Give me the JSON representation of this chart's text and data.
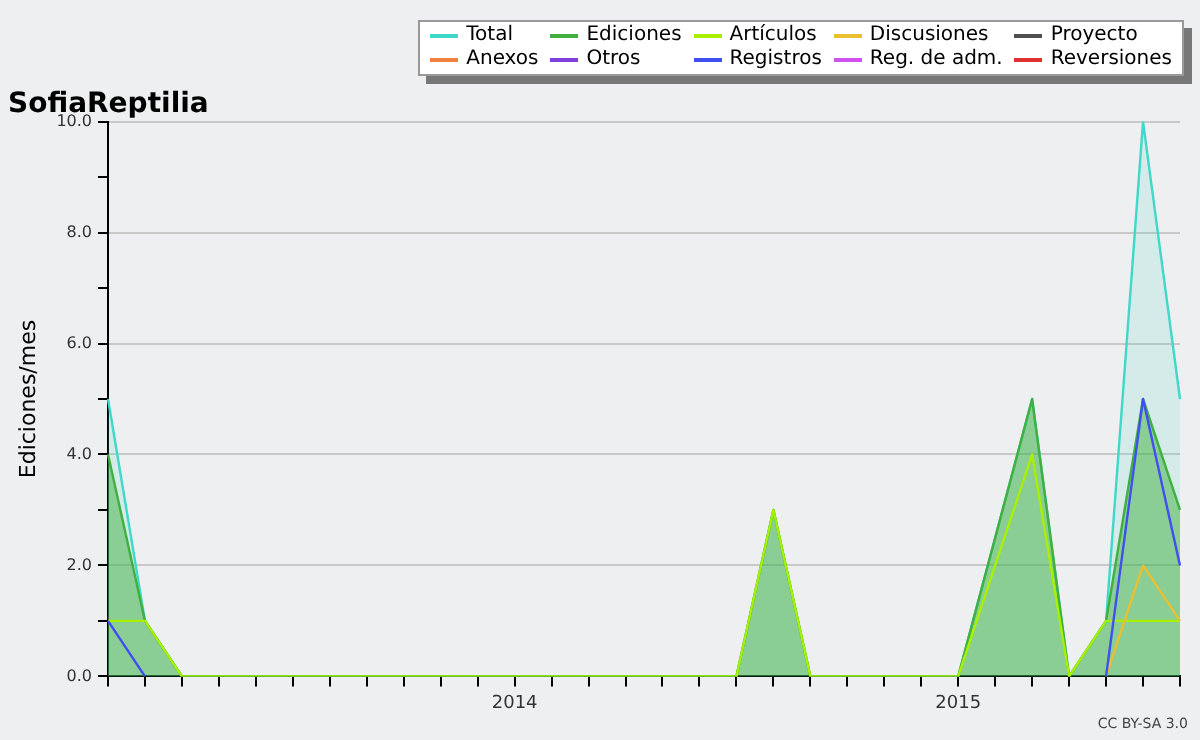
{
  "chart_data": {
    "type": "area",
    "title": "SofiaReptilia",
    "ylabel": "Ediciones/mes",
    "categories": [
      null,
      null,
      null,
      null,
      null,
      null,
      null,
      null,
      null,
      null,
      null,
      "2014",
      null,
      null,
      null,
      null,
      null,
      null,
      null,
      null,
      null,
      null,
      null,
      "2015",
      null,
      null,
      null,
      null,
      null,
      null
    ],
    "series": [
      {
        "name": "Total",
        "color": "#40d8c8",
        "values": [
          5,
          1,
          0,
          0,
          0,
          0,
          0,
          0,
          0,
          0,
          0,
          0,
          0,
          0,
          0,
          0,
          0,
          0,
          3,
          0,
          0,
          0,
          0,
          0,
          2.5,
          5,
          0,
          1,
          10,
          5
        ]
      },
      {
        "name": "Ediciones",
        "color": "#40b040",
        "values": [
          4,
          1,
          0,
          0,
          0,
          0,
          0,
          0,
          0,
          0,
          0,
          0,
          0,
          0,
          0,
          0,
          0,
          0,
          3,
          0,
          0,
          0,
          0,
          0,
          2.5,
          5,
          0,
          1,
          5,
          3
        ]
      },
      {
        "name": "Artículos",
        "color": "#a8f000",
        "type": "line",
        "values": [
          1,
          1,
          0,
          0,
          0,
          0,
          0,
          0,
          0,
          0,
          0,
          0,
          0,
          0,
          0,
          0,
          0,
          0,
          3,
          0,
          0,
          0,
          0,
          0,
          2,
          4,
          0,
          1,
          1,
          1
        ]
      },
      {
        "name": "Discusiones",
        "color": "#e8c030",
        "type": "line",
        "values": [
          null,
          null,
          null,
          null,
          null,
          null,
          null,
          null,
          null,
          null,
          null,
          null,
          null,
          null,
          null,
          null,
          null,
          null,
          null,
          null,
          null,
          null,
          null,
          null,
          null,
          null,
          null,
          0,
          2,
          1
        ]
      },
      {
        "name": "Proyecto",
        "color": "#505050",
        "type": "line",
        "values": [
          null,
          null,
          null,
          null,
          null,
          null,
          null,
          null,
          null,
          null,
          null,
          null,
          null,
          null,
          null,
          null,
          null,
          null,
          null,
          null,
          null,
          null,
          null,
          null,
          null,
          null,
          null,
          null,
          null,
          null
        ]
      },
      {
        "name": "Anexos",
        "color": "#f08040",
        "type": "line",
        "values": [
          null,
          null,
          null,
          null,
          null,
          null,
          null,
          null,
          null,
          null,
          null,
          null,
          null,
          null,
          null,
          null,
          null,
          null,
          null,
          null,
          null,
          null,
          null,
          null,
          null,
          null,
          null,
          null,
          null,
          null
        ]
      },
      {
        "name": "Otros",
        "color": "#8040e0",
        "type": "line",
        "values": [
          null,
          null,
          null,
          null,
          null,
          null,
          null,
          null,
          null,
          null,
          null,
          null,
          null,
          null,
          null,
          null,
          null,
          null,
          null,
          null,
          null,
          null,
          null,
          null,
          null,
          null,
          null,
          null,
          null,
          null
        ]
      },
      {
        "name": "Registros",
        "color": "#4050f0",
        "type": "line",
        "values": [
          1,
          0,
          null,
          null,
          null,
          null,
          null,
          null,
          null,
          null,
          null,
          null,
          null,
          null,
          null,
          null,
          null,
          null,
          null,
          null,
          null,
          null,
          null,
          null,
          null,
          null,
          null,
          0,
          5,
          2
        ]
      },
      {
        "name": "Reg. de adm.",
        "color": "#d050f0",
        "type": "line",
        "values": [
          null,
          null,
          null,
          null,
          null,
          null,
          null,
          null,
          null,
          null,
          null,
          null,
          null,
          null,
          null,
          null,
          null,
          null,
          null,
          null,
          null,
          null,
          null,
          null,
          null,
          null,
          null,
          null,
          null,
          null
        ]
      },
      {
        "name": "Reversiones",
        "color": "#e03030",
        "type": "line",
        "values": [
          null,
          null,
          null,
          null,
          null,
          null,
          null,
          null,
          null,
          null,
          null,
          null,
          null,
          null,
          null,
          null,
          null,
          null,
          null,
          null,
          null,
          null,
          null,
          null,
          null,
          null,
          null,
          null,
          null,
          null
        ]
      }
    ],
    "ylim": [
      0,
      10
    ],
    "yticks": [
      {
        "value": 0,
        "label": "0.0"
      },
      {
        "value": 1,
        "label": null
      },
      {
        "value": 2,
        "label": "2.0"
      },
      {
        "value": 3,
        "label": null
      },
      {
        "value": 4,
        "label": "4.0"
      },
      {
        "value": 5,
        "label": null
      },
      {
        "value": 6,
        "label": "6.0"
      },
      {
        "value": 7,
        "label": null
      },
      {
        "value": 8,
        "label": "8.0"
      },
      {
        "value": 9,
        "label": null
      },
      {
        "value": 10,
        "label": "10.0"
      }
    ],
    "grid": "y",
    "legend": "top right",
    "marker": "none",
    "line_style": "solid",
    "annotations": [
      "CC BY-SA 3.0"
    ]
  }
}
